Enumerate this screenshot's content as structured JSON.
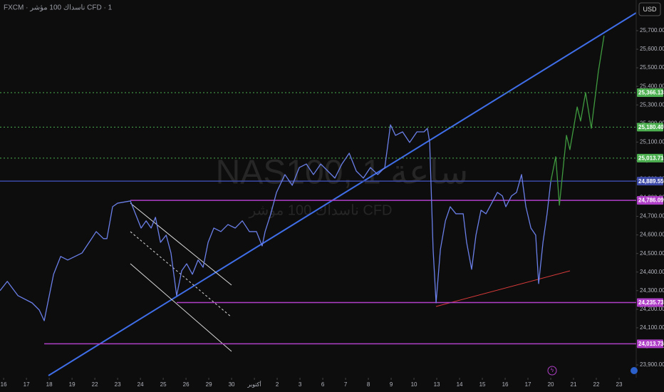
{
  "header": {
    "title": "FXCM · ناسداك 100 مؤشر CFD · 1",
    "watermark": "NAS100, 1 ساعة",
    "watermark_sub": "ناسداك 100 مؤشر CFD",
    "currency": "USD"
  },
  "chart_data": {
    "type": "line",
    "xlim": [
      -0.16,
      27.75
    ],
    "ylim": [
      23831,
      25865
    ],
    "xticks": [
      {
        "value": 0,
        "label": "16"
      },
      {
        "value": 1,
        "label": "17"
      },
      {
        "value": 2,
        "label": "18"
      },
      {
        "value": 3,
        "label": "19"
      },
      {
        "value": 4,
        "label": "22"
      },
      {
        "value": 5,
        "label": "23"
      },
      {
        "value": 6,
        "label": "24"
      },
      {
        "value": 7,
        "label": "25"
      },
      {
        "value": 8,
        "label": "26"
      },
      {
        "value": 9,
        "label": "29"
      },
      {
        "value": 10,
        "label": "30"
      },
      {
        "value": 11,
        "label": "أكتوبر"
      },
      {
        "value": 12,
        "label": "2"
      },
      {
        "value": 13,
        "label": "3"
      },
      {
        "value": 14,
        "label": "6"
      },
      {
        "value": 15,
        "label": "7"
      },
      {
        "value": 16,
        "label": "8"
      },
      {
        "value": 17,
        "label": "9"
      },
      {
        "value": 18,
        "label": "10"
      },
      {
        "value": 19,
        "label": "13"
      },
      {
        "value": 20,
        "label": "14"
      },
      {
        "value": 21,
        "label": "15"
      },
      {
        "value": 22,
        "label": "16"
      },
      {
        "value": 23,
        "label": "17"
      },
      {
        "value": 24,
        "label": "20"
      },
      {
        "value": 25,
        "label": "21"
      },
      {
        "value": 26,
        "label": "22"
      },
      {
        "value": 27,
        "label": "23"
      }
    ],
    "yticks": [
      {
        "value": 23900,
        "label": "23,900.00"
      },
      {
        "value": 24000,
        "label": "24,000.00"
      },
      {
        "value": 24100,
        "label": "24,100.00"
      },
      {
        "value": 24200,
        "label": "24,200.00"
      },
      {
        "value": 24300,
        "label": "24,300.00"
      },
      {
        "value": 24400,
        "label": "24,400.00"
      },
      {
        "value": 24500,
        "label": "24,500.00"
      },
      {
        "value": 24600,
        "label": "24,600.00"
      },
      {
        "value": 24700,
        "label": "24,700.00"
      },
      {
        "value": 24800,
        "label": "24,800.00"
      },
      {
        "value": 24900,
        "label": "24,900.00"
      },
      {
        "value": 25000,
        "label": "25,000.00"
      },
      {
        "value": 25100,
        "label": "25,100.00"
      },
      {
        "value": 25200,
        "label": "25,200.00"
      },
      {
        "value": 25300,
        "label": "25,300.00"
      },
      {
        "value": 25400,
        "label": "25,400.00"
      },
      {
        "value": 25500,
        "label": "25,500.00"
      },
      {
        "value": 25600,
        "label": "25,600.00"
      },
      {
        "value": 25700,
        "label": "25,700.00"
      }
    ],
    "series": [
      {
        "color": "#6a7fe8",
        "x": [
          -0.16,
          0.16,
          0.63,
          1.25,
          1.56,
          1.78,
          1.97,
          2.19,
          2.5,
          2.81,
          3.13,
          3.44,
          3.75,
          4.06,
          4.38,
          4.53,
          4.78,
          5.0,
          5.56,
          5.78,
          6.03,
          6.25,
          6.47,
          6.66,
          6.88,
          7.13,
          7.34,
          7.59,
          7.81,
          8.03,
          8.28,
          8.53,
          8.75,
          8.97,
          9.22,
          9.53,
          9.84,
          10.16,
          10.47,
          10.78,
          11.09,
          11.34,
          11.47,
          11.72,
          11.97,
          12.34,
          12.66,
          12.97,
          13.28,
          13.59,
          13.91,
          14.22,
          14.53,
          14.84,
          15.16,
          15.47,
          15.78,
          16.09,
          16.41,
          16.72,
          16.97,
          17.19,
          17.5,
          17.81,
          18.13,
          18.44,
          18.59,
          18.69,
          18.84,
          18.97,
          19.16,
          19.38,
          19.59,
          19.84,
          20.16,
          20.31,
          20.53,
          20.72,
          20.94,
          21.16,
          21.41,
          21.66,
          21.88,
          22.03,
          22.28,
          22.5,
          22.72,
          22.91,
          23.13,
          23.34,
          23.47,
          23.66,
          23.84,
          24.0
        ],
        "values": [
          24300,
          24350,
          24273,
          24234,
          24196,
          24138,
          24254,
          24388,
          24484,
          24465,
          24484,
          24503,
          24560,
          24618,
          24580,
          24580,
          24752,
          24771,
          24783,
          24714,
          24637,
          24676,
          24637,
          24695,
          24560,
          24599,
          24503,
          24273,
          24407,
          24445,
          24388,
          24465,
          24426,
          24560,
          24637,
          24618,
          24656,
          24637,
          24676,
          24618,
          24618,
          24541,
          24618,
          24714,
          24829,
          24925,
          24867,
          24963,
          24982,
          24925,
          24982,
          24944,
          24906,
          24982,
          25040,
          24944,
          24906,
          24963,
          24925,
          24963,
          25193,
          25136,
          25155,
          25098,
          25155,
          25155,
          25174,
          25098,
          24522,
          24234,
          24522,
          24676,
          24752,
          24714,
          24714,
          24560,
          24415,
          24599,
          24733,
          24714,
          24771,
          24829,
          24810,
          24752,
          24810,
          24829,
          24925,
          24752,
          24637,
          24599,
          24338,
          24560,
          24714,
          24887
        ]
      },
      {
        "color": "#3f9a3f",
        "x": [
          24.0,
          24.22,
          24.38,
          24.69,
          24.84,
          25.16,
          25.31,
          25.53,
          25.78,
          26.09,
          26.34
        ],
        "values": [
          24887,
          25021,
          24760,
          25136,
          25059,
          25289,
          25213,
          25366,
          25174,
          25481,
          25673
        ]
      }
    ],
    "levels": [
      {
        "value": 25366.13,
        "label": "25,366.13",
        "color": "#4caf50",
        "start": -0.16,
        "style": "dotted"
      },
      {
        "value": 25180.4,
        "label": "25,180.40",
        "color": "#4caf50",
        "start": -0.16,
        "style": "dotted"
      },
      {
        "value": 25013.71,
        "label": "25,013.71",
        "color": "#4caf50",
        "start": -0.16,
        "style": "dotted"
      },
      {
        "value": 24889.55,
        "label": "24,889.55",
        "color": "#3d4aa8",
        "start": -0.16,
        "style": "solid"
      },
      {
        "value": 24786.09,
        "label": "24,786.09",
        "color": "#b03fc8",
        "start": 5.56,
        "style": "solid"
      },
      {
        "value": 24235.73,
        "label": "24,235.73",
        "color": "#b03fc8",
        "start": 7.59,
        "style": "solid"
      },
      {
        "value": 24013.73,
        "label": "24,013.73",
        "color": "#b03fc8",
        "start": 1.78,
        "style": "solid"
      }
    ]
  }
}
